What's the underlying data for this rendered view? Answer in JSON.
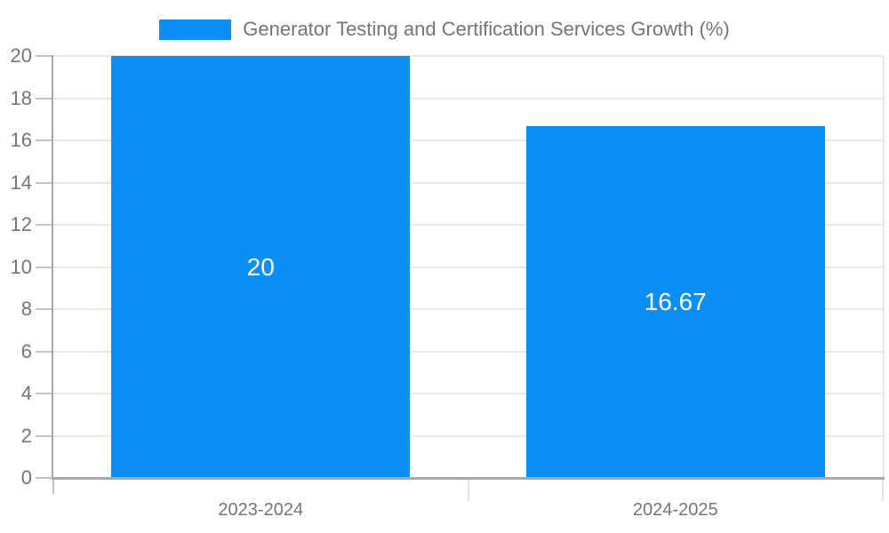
{
  "chart_data": {
    "type": "bar",
    "title": "Generator Testing and Certification Services Growth (%)",
    "legend": [
      "Generator Testing and Certification Services Growth (%)"
    ],
    "legend_position": "top-center",
    "categories": [
      "2023-2024",
      "2024-2025"
    ],
    "values": [
      20,
      16.67
    ],
    "value_labels": [
      "20",
      "16.67"
    ],
    "xlabel": "",
    "ylabel": "",
    "ylim": [
      0,
      20
    ],
    "ytick_step": 2,
    "yticks": [
      0,
      2,
      4,
      6,
      8,
      10,
      12,
      14,
      16,
      18,
      20
    ],
    "grid": true,
    "colors": {
      "bar": "#0A8FF9",
      "grid": "#e8e8e8",
      "axis": "#a8a8a8",
      "tick": "#c2c2c2",
      "tick_inner": "#e2e2e2",
      "text": "#757575",
      "value_label": "#ffffff",
      "background": "#ffffff"
    }
  }
}
